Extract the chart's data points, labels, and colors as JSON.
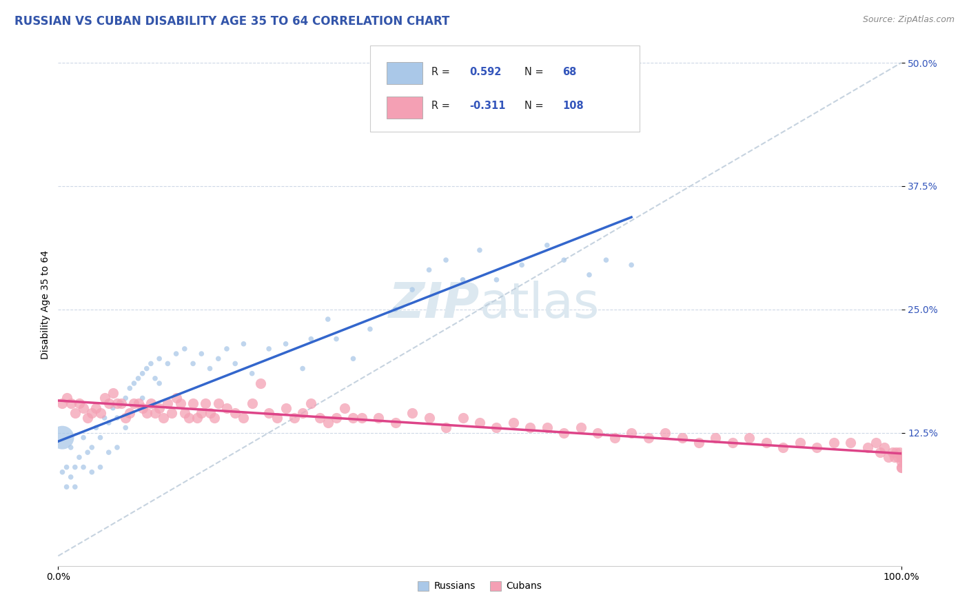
{
  "title": "RUSSIAN VS CUBAN DISABILITY AGE 35 TO 64 CORRELATION CHART",
  "ylabel": "Disability Age 35 to 64",
  "source_text": "Source: ZipAtlas.com",
  "russian_R": 0.592,
  "russian_N": 68,
  "cuban_R": -0.311,
  "cuban_N": 108,
  "xlim": [
    0.0,
    1.0
  ],
  "ylim": [
    -0.01,
    0.52
  ],
  "ytick_labels": [
    "12.5%",
    "25.0%",
    "37.5%",
    "50.0%"
  ],
  "ytick_positions": [
    0.125,
    0.25,
    0.375,
    0.5
  ],
  "russian_color": "#aac8e8",
  "cuban_color": "#f4a0b4",
  "russian_line_color": "#3366cc",
  "cuban_line_color": "#dd4488",
  "diagonal_color": "#b8c8d8",
  "background_color": "#ffffff",
  "grid_color": "#c8d4e4",
  "legend_color": "#3355bb",
  "title_color": "#3355aa",
  "watermark_color": "#dce8f0",
  "russian_x": [
    0.005,
    0.005,
    0.01,
    0.01,
    0.015,
    0.015,
    0.02,
    0.02,
    0.025,
    0.03,
    0.03,
    0.035,
    0.04,
    0.04,
    0.045,
    0.05,
    0.05,
    0.055,
    0.06,
    0.06,
    0.065,
    0.07,
    0.07,
    0.075,
    0.08,
    0.08,
    0.085,
    0.09,
    0.095,
    0.1,
    0.1,
    0.105,
    0.11,
    0.115,
    0.12,
    0.12,
    0.13,
    0.14,
    0.15,
    0.16,
    0.17,
    0.18,
    0.19,
    0.2,
    0.21,
    0.22,
    0.23,
    0.25,
    0.27,
    0.29,
    0.3,
    0.32,
    0.33,
    0.35,
    0.37,
    0.4,
    0.42,
    0.44,
    0.46,
    0.48,
    0.5,
    0.52,
    0.55,
    0.58,
    0.6,
    0.63,
    0.65,
    0.68
  ],
  "russian_y": [
    0.12,
    0.085,
    0.09,
    0.07,
    0.11,
    0.08,
    0.09,
    0.07,
    0.1,
    0.12,
    0.09,
    0.105,
    0.11,
    0.085,
    0.13,
    0.12,
    0.09,
    0.14,
    0.135,
    0.105,
    0.15,
    0.14,
    0.11,
    0.155,
    0.16,
    0.13,
    0.17,
    0.175,
    0.18,
    0.185,
    0.16,
    0.19,
    0.195,
    0.18,
    0.2,
    0.175,
    0.195,
    0.205,
    0.21,
    0.195,
    0.205,
    0.19,
    0.2,
    0.21,
    0.195,
    0.215,
    0.185,
    0.21,
    0.215,
    0.19,
    0.22,
    0.24,
    0.22,
    0.2,
    0.23,
    0.25,
    0.27,
    0.29,
    0.3,
    0.28,
    0.31,
    0.28,
    0.295,
    0.315,
    0.3,
    0.285,
    0.3,
    0.295
  ],
  "russian_sizes": [
    600,
    30,
    30,
    30,
    30,
    30,
    30,
    30,
    30,
    30,
    30,
    30,
    30,
    30,
    30,
    30,
    30,
    30,
    30,
    30,
    30,
    30,
    30,
    30,
    30,
    30,
    30,
    30,
    30,
    30,
    30,
    30,
    30,
    30,
    30,
    30,
    30,
    30,
    30,
    30,
    30,
    30,
    30,
    30,
    30,
    30,
    30,
    30,
    30,
    30,
    30,
    30,
    30,
    30,
    30,
    30,
    30,
    30,
    30,
    30,
    30,
    30,
    30,
    30,
    30,
    30,
    30,
    30
  ],
  "cuban_x": [
    0.005,
    0.01,
    0.015,
    0.02,
    0.025,
    0.03,
    0.035,
    0.04,
    0.045,
    0.05,
    0.055,
    0.06,
    0.065,
    0.07,
    0.075,
    0.08,
    0.085,
    0.09,
    0.095,
    0.1,
    0.105,
    0.11,
    0.115,
    0.12,
    0.125,
    0.13,
    0.135,
    0.14,
    0.145,
    0.15,
    0.155,
    0.16,
    0.165,
    0.17,
    0.175,
    0.18,
    0.185,
    0.19,
    0.2,
    0.21,
    0.22,
    0.23,
    0.24,
    0.25,
    0.26,
    0.27,
    0.28,
    0.29,
    0.3,
    0.31,
    0.32,
    0.33,
    0.34,
    0.35,
    0.36,
    0.38,
    0.4,
    0.42,
    0.44,
    0.46,
    0.48,
    0.5,
    0.52,
    0.54,
    0.56,
    0.58,
    0.6,
    0.62,
    0.64,
    0.66,
    0.68,
    0.7,
    0.72,
    0.74,
    0.76,
    0.78,
    0.8,
    0.82,
    0.84,
    0.86,
    0.88,
    0.9,
    0.92,
    0.94,
    0.96,
    0.97,
    0.975,
    0.98,
    0.985,
    0.99,
    0.992,
    0.994,
    0.996,
    0.998,
    1.0,
    1.0,
    1.0,
    1.0,
    1.0,
    1.0,
    1.0,
    1.0,
    1.0,
    1.0,
    1.0,
    1.0,
    1.0,
    1.0
  ],
  "cuban_y": [
    0.155,
    0.16,
    0.155,
    0.145,
    0.155,
    0.15,
    0.14,
    0.145,
    0.15,
    0.145,
    0.16,
    0.155,
    0.165,
    0.155,
    0.155,
    0.14,
    0.145,
    0.155,
    0.155,
    0.15,
    0.145,
    0.155,
    0.145,
    0.15,
    0.14,
    0.155,
    0.145,
    0.16,
    0.155,
    0.145,
    0.14,
    0.155,
    0.14,
    0.145,
    0.155,
    0.145,
    0.14,
    0.155,
    0.15,
    0.145,
    0.14,
    0.155,
    0.175,
    0.145,
    0.14,
    0.15,
    0.14,
    0.145,
    0.155,
    0.14,
    0.135,
    0.14,
    0.15,
    0.14,
    0.14,
    0.14,
    0.135,
    0.145,
    0.14,
    0.13,
    0.14,
    0.135,
    0.13,
    0.135,
    0.13,
    0.13,
    0.125,
    0.13,
    0.125,
    0.12,
    0.125,
    0.12,
    0.125,
    0.12,
    0.115,
    0.12,
    0.115,
    0.12,
    0.115,
    0.11,
    0.115,
    0.11,
    0.115,
    0.115,
    0.11,
    0.115,
    0.105,
    0.11,
    0.1,
    0.105,
    0.1,
    0.105,
    0.1,
    0.105,
    0.1,
    0.1,
    0.1,
    0.1,
    0.1,
    0.1,
    0.1,
    0.1,
    0.1,
    0.1,
    0.1,
    0.095,
    0.09,
    0.09
  ],
  "title_fontsize": 12,
  "axis_label_fontsize": 10,
  "tick_fontsize": 10,
  "source_fontsize": 9
}
